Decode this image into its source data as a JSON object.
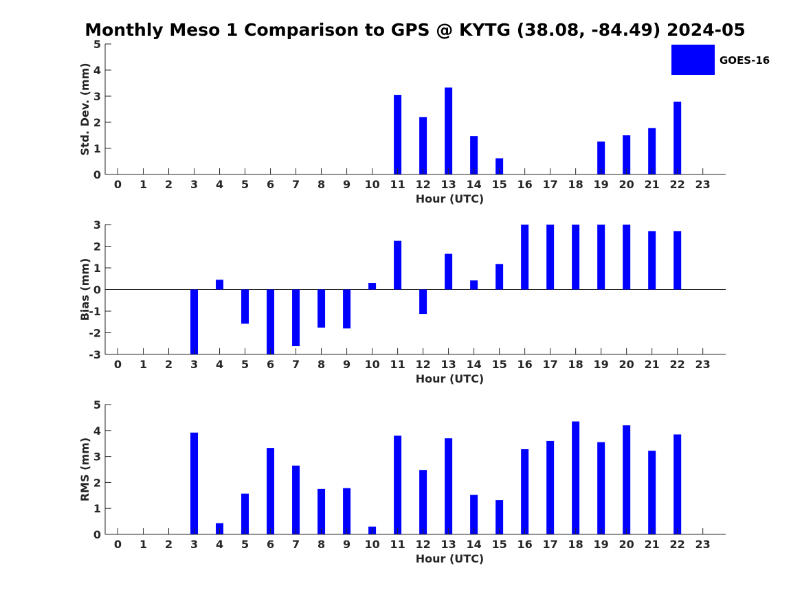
{
  "figure": {
    "title": "Monthly Meso 1 Comparison to GPS @ KYTG (38.08, -84.49) 2024-05"
  },
  "legend": {
    "label": "GOES-16",
    "color": "#0000ff",
    "placement": "top-right"
  },
  "chart_data": [
    {
      "type": "bar",
      "name": "std-dev",
      "xlabel": "Hour (UTC)",
      "ylabel": "Std. Dev. (mm)",
      "xlim": [
        -0.5,
        23.9
      ],
      "ylim": [
        0,
        5
      ],
      "xticks": [
        0,
        1,
        2,
        3,
        4,
        5,
        6,
        7,
        8,
        9,
        10,
        11,
        12,
        13,
        14,
        15,
        16,
        17,
        18,
        19,
        20,
        21,
        22,
        23
      ],
      "yticks": [
        0,
        1,
        2,
        3,
        4,
        5
      ],
      "x": [
        11,
        12,
        13,
        14,
        15,
        19,
        20,
        21,
        22
      ],
      "values": [
        3.05,
        2.2,
        3.33,
        1.47,
        0.62,
        1.26,
        1.5,
        1.78,
        2.79
      ],
      "color": "#0000ff"
    },
    {
      "type": "bar",
      "name": "bias",
      "xlabel": "Hour (UTC)",
      "ylabel": "Bias (mm)",
      "xlim": [
        -0.5,
        23.9
      ],
      "ylim": [
        -3,
        3
      ],
      "xticks": [
        0,
        1,
        2,
        3,
        4,
        5,
        6,
        7,
        8,
        9,
        10,
        11,
        12,
        13,
        14,
        15,
        16,
        17,
        18,
        19,
        20,
        21,
        22,
        23
      ],
      "yticks": [
        -3,
        -2,
        -1,
        0,
        1,
        2,
        3
      ],
      "x": [
        3,
        4,
        5,
        6,
        7,
        8,
        9,
        10,
        11,
        12,
        13,
        14,
        15,
        16,
        17,
        18,
        19,
        20,
        21,
        22
      ],
      "values": [
        -3.0,
        0.45,
        -1.58,
        -3.0,
        -2.62,
        -1.76,
        -1.8,
        0.3,
        2.25,
        -1.13,
        1.65,
        0.42,
        1.18,
        3.0,
        3.0,
        3.0,
        3.0,
        3.0,
        2.7,
        2.7
      ],
      "color": "#0000ff"
    },
    {
      "type": "bar",
      "name": "rms",
      "xlabel": "Hour (UTC)",
      "ylabel": "RMS (mm)",
      "xlim": [
        -0.5,
        23.9
      ],
      "ylim": [
        0,
        5
      ],
      "xticks": [
        0,
        1,
        2,
        3,
        4,
        5,
        6,
        7,
        8,
        9,
        10,
        11,
        12,
        13,
        14,
        15,
        16,
        17,
        18,
        19,
        20,
        21,
        22,
        23
      ],
      "yticks": [
        0,
        1,
        2,
        3,
        4,
        5
      ],
      "x": [
        3,
        4,
        5,
        6,
        7,
        8,
        9,
        10,
        11,
        12,
        13,
        14,
        15,
        16,
        17,
        18,
        19,
        20,
        21,
        22
      ],
      "values": [
        3.92,
        0.43,
        1.57,
        3.33,
        2.65,
        1.75,
        1.78,
        0.3,
        3.8,
        2.48,
        3.7,
        1.52,
        1.32,
        3.28,
        3.6,
        4.35,
        3.55,
        4.2,
        3.22,
        3.85
      ],
      "color": "#0000ff"
    }
  ]
}
